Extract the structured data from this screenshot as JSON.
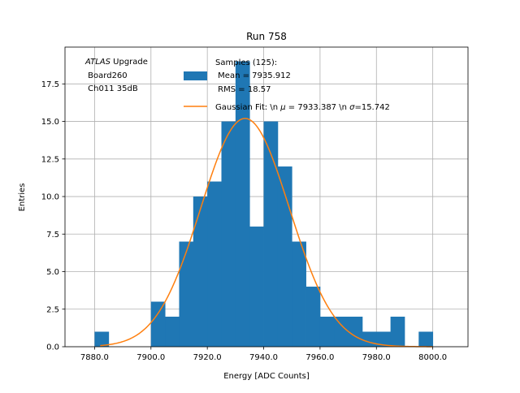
{
  "chart_data": {
    "type": "histogram",
    "title": "Run 758",
    "xlabel": "Energy [ADC Counts]",
    "ylabel": "Entries",
    "xlim": [
      7869.5,
      8012.5
    ],
    "ylim": [
      0,
      19.95
    ],
    "grid": true,
    "x_ticks": [
      7880.0,
      7900.0,
      7920.0,
      7940.0,
      7960.0,
      7980.0,
      8000.0
    ],
    "x_tick_labels": [
      "7880.0",
      "7900.0",
      "7920.0",
      "7940.0",
      "7960.0",
      "7980.0",
      "8000.0"
    ],
    "y_ticks": [
      0.0,
      2.5,
      5.0,
      7.5,
      10.0,
      12.5,
      15.0,
      17.5
    ],
    "y_tick_labels": [
      "0.0",
      "2.5",
      "5.0",
      "7.5",
      "10.0",
      "12.5",
      "15.0",
      "17.5"
    ],
    "histogram": {
      "name_lines": [
        "Samples (125):",
        " Mean = 7935.912",
        " RMS = 18.57"
      ],
      "color": "#1f77b4",
      "bins": [
        {
          "x0": 7880,
          "x1": 7885,
          "count": 1
        },
        {
          "x0": 7900,
          "x1": 7905,
          "count": 3
        },
        {
          "x0": 7905,
          "x1": 7910,
          "count": 2
        },
        {
          "x0": 7910,
          "x1": 7915,
          "count": 7
        },
        {
          "x0": 7915,
          "x1": 7920,
          "count": 10
        },
        {
          "x0": 7920,
          "x1": 7925,
          "count": 11
        },
        {
          "x0": 7925,
          "x1": 7930,
          "count": 15
        },
        {
          "x0": 7930,
          "x1": 7935,
          "count": 19
        },
        {
          "x0": 7935,
          "x1": 7940,
          "count": 8
        },
        {
          "x0": 7940,
          "x1": 7945,
          "count": 15
        },
        {
          "x0": 7945,
          "x1": 7950,
          "count": 12
        },
        {
          "x0": 7950,
          "x1": 7955,
          "count": 7
        },
        {
          "x0": 7955,
          "x1": 7960,
          "count": 4
        },
        {
          "x0": 7960,
          "x1": 7965,
          "count": 2
        },
        {
          "x0": 7965,
          "x1": 7970,
          "count": 2
        },
        {
          "x0": 7970,
          "x1": 7975,
          "count": 2
        },
        {
          "x0": 7975,
          "x1": 7980,
          "count": 1
        },
        {
          "x0": 7980,
          "x1": 7985,
          "count": 1
        },
        {
          "x0": 7985,
          "x1": 7990,
          "count": 2
        },
        {
          "x0": 7995,
          "x1": 8000,
          "count": 1
        }
      ]
    },
    "fit": {
      "name_prefix": "Gaussian Fit: \\n ",
      "mu_symbol": "μ",
      "mu_text": " = 7933.387 \\n ",
      "sigma_symbol": "σ",
      "sigma_text": "=15.742",
      "color": "#ff7f0e",
      "mu": 7933.387,
      "sigma": 15.742,
      "amplitude": 15.2,
      "x_range": [
        7882,
        8000
      ]
    },
    "legend_position": "upper-right",
    "annotation": {
      "line1_italic": "ATLAS",
      "line1_rest": " Upgrade",
      "line2": " Board260",
      "line3": " Ch011 35dB"
    }
  }
}
